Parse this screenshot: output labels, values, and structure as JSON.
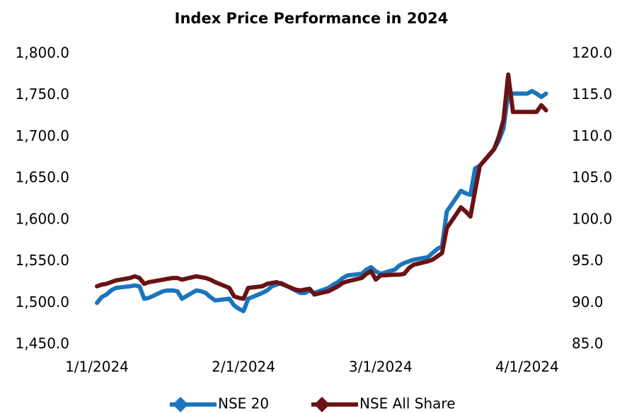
{
  "chart_data": {
    "type": "line",
    "title": "Index Price Performance in 2024",
    "x": [
      "1/1/2024",
      "1/2/2024",
      "1/3/2024",
      "1/4/2024",
      "1/5/2024",
      "1/8/2024",
      "1/9/2024",
      "1/10/2024",
      "1/11/2024",
      "1/12/2024",
      "1/15/2024",
      "1/16/2024",
      "1/17/2024",
      "1/18/2024",
      "1/19/2024",
      "1/22/2024",
      "1/23/2024",
      "1/24/2024",
      "1/25/2024",
      "1/26/2024",
      "1/29/2024",
      "1/30/2024",
      "1/31/2024",
      "2/1/2024",
      "2/2/2024",
      "2/5/2024",
      "2/6/2024",
      "2/7/2024",
      "2/8/2024",
      "2/9/2024",
      "2/12/2024",
      "2/13/2024",
      "2/14/2024",
      "2/15/2024",
      "2/16/2024",
      "2/19/2024",
      "2/20/2024",
      "2/21/2024",
      "2/22/2024",
      "2/23/2024",
      "2/26/2024",
      "2/27/2024",
      "2/28/2024",
      "2/29/2024",
      "3/1/2024",
      "3/4/2024",
      "3/5/2024",
      "3/6/2024",
      "3/7/2024",
      "3/8/2024",
      "3/11/2024",
      "3/12/2024",
      "3/13/2024",
      "3/14/2024",
      "3/15/2024",
      "3/18/2024",
      "3/19/2024",
      "3/20/2024",
      "3/21/2024",
      "3/22/2024",
      "3/25/2024",
      "3/26/2024",
      "3/27/2024",
      "3/28/2024",
      "3/29/2024",
      "4/1/2024",
      "4/2/2024",
      "4/3/2024",
      "4/4/2024",
      "4/5/2024"
    ],
    "series": [
      {
        "name": "NSE 20",
        "color": "#1a75bc",
        "axis": "y",
        "values": [
          1500,
          1507,
          1510,
          1515,
          1518,
          1520,
          1521,
          1520,
          1505,
          1506,
          1514,
          1515,
          1515,
          1514,
          1505,
          1515,
          1514,
          1512,
          1507,
          1503,
          1505,
          1497,
          1493,
          1490,
          1505,
          1512,
          1515,
          1520,
          1522,
          1524,
          1515,
          1512,
          1512,
          1515,
          1512,
          1518,
          1522,
          1525,
          1530,
          1533,
          1535,
          1540,
          1543,
          1538,
          1535,
          1540,
          1545,
          1548,
          1550,
          1552,
          1555,
          1560,
          1565,
          1568,
          1610,
          1635,
          1632,
          1630,
          1662,
          1665,
          1685,
          1695,
          1710,
          1752,
          1752,
          1752,
          1755,
          1752,
          1748,
          1752
        ]
      },
      {
        "name": "NSE All Share",
        "color": "#6b1214",
        "axis": "y2",
        "values": [
          92.0,
          92.2,
          92.3,
          92.5,
          92.7,
          93.0,
          93.2,
          93.0,
          92.3,
          92.5,
          92.8,
          92.9,
          93.0,
          93.0,
          92.8,
          93.2,
          93.1,
          93.0,
          92.8,
          92.5,
          91.8,
          90.8,
          90.6,
          90.5,
          91.8,
          92.0,
          92.3,
          92.4,
          92.5,
          92.3,
          91.6,
          91.5,
          91.6,
          91.7,
          91.0,
          91.4,
          91.7,
          92.0,
          92.4,
          92.6,
          93.0,
          93.5,
          93.8,
          92.8,
          93.3,
          93.4,
          93.4,
          93.5,
          94.2,
          94.6,
          95.0,
          95.2,
          95.6,
          96.0,
          99.0,
          101.5,
          101.0,
          100.4,
          103.5,
          106.5,
          108.5,
          110.0,
          112.0,
          117.5,
          113.0,
          113.0,
          113.0,
          113.0,
          113.8,
          113.2
        ]
      }
    ],
    "xlim": [
      "1/1/2024",
      "4/7/2024"
    ],
    "xticks": [
      "1/1/2024",
      "2/1/2024",
      "3/1/2024",
      "4/1/2024"
    ],
    "ylim": [
      1450,
      1800
    ],
    "yticks": [
      {
        "value": 1450,
        "label": "1,450.0"
      },
      {
        "value": 1500,
        "label": "1,500.0"
      },
      {
        "value": 1550,
        "label": "1,550.0"
      },
      {
        "value": 1600,
        "label": "1,600.0"
      },
      {
        "value": 1650,
        "label": "1,650.0"
      },
      {
        "value": 1700,
        "label": "1,700.0"
      },
      {
        "value": 1750,
        "label": "1,750.0"
      },
      {
        "value": 1800,
        "label": "1,800.0"
      }
    ],
    "y2lim": [
      85,
      120
    ],
    "y2ticks": [
      {
        "value": 85,
        "label": "85.0"
      },
      {
        "value": 90,
        "label": "90.0"
      },
      {
        "value": 95,
        "label": "95.0"
      },
      {
        "value": 100,
        "label": "100.0"
      },
      {
        "value": 105,
        "label": "105.0"
      },
      {
        "value": 110,
        "label": "110.0"
      },
      {
        "value": 115,
        "label": "115.0"
      },
      {
        "value": 120,
        "label": "120.0"
      }
    ],
    "grid": false,
    "legend": "bottom"
  }
}
